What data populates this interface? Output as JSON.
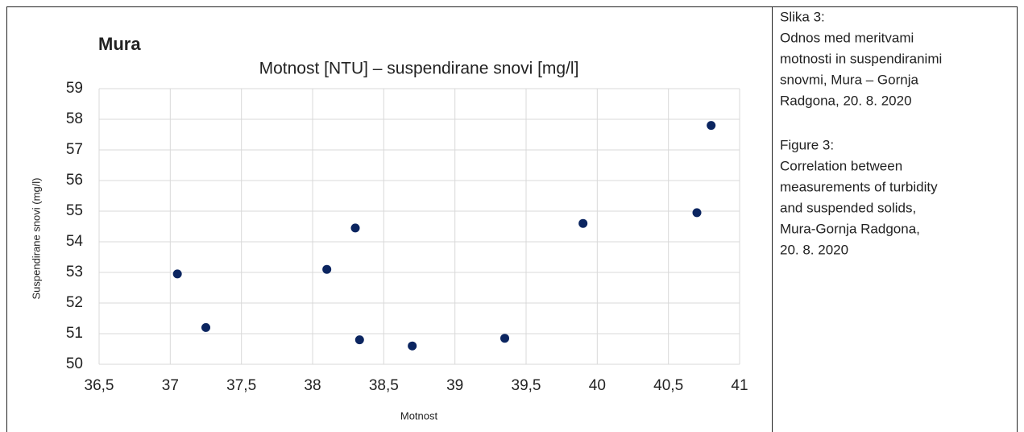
{
  "chart_data": {
    "type": "scatter",
    "heading": "Mura",
    "title": "Motnost [NTU] – suspendirane snovi [mg/l]",
    "x_label": "Motnost",
    "y_label": "Suspendirane  snovi (mg/l)",
    "series": [
      {
        "color": "#0b2560",
        "x": [
          37.05,
          37.25,
          38.1,
          38.3,
          38.33,
          38.7,
          39.35,
          39.9,
          40.7,
          40.8
        ],
        "values": [
          52.95,
          51.2,
          53.1,
          54.45,
          50.8,
          50.6,
          50.85,
          54.6,
          54.95,
          57.8
        ]
      }
    ],
    "xlim": [
      36.5,
      41
    ],
    "xticks": [
      {
        "value": 36.5,
        "label": "36,5"
      },
      37,
      {
        "value": 37.5,
        "label": "37,5"
      },
      38,
      {
        "value": 38.5,
        "label": "38,5"
      },
      39,
      {
        "value": 39.5,
        "label": "39,5"
      },
      40,
      {
        "value": 40.5,
        "label": "40,5"
      },
      41
    ],
    "ylim": [
      50,
      59
    ],
    "yticks": [
      50,
      51,
      52,
      53,
      54,
      55,
      56,
      57,
      58,
      59
    ],
    "grid": true
  },
  "caption": {
    "slovenian": [
      "Slika 3:",
      "Odnos med meritvami",
      "motnosti in suspendiranimi",
      "snovmi, Mura – Gornja",
      "Radgona, 20. 8. 2020"
    ],
    "english": [
      "Figure 3:",
      "Correlation between",
      "measurements of turbidity",
      "and suspended solids,",
      "Mura-Gornja Radgona,",
      "20. 8. 2020"
    ]
  }
}
